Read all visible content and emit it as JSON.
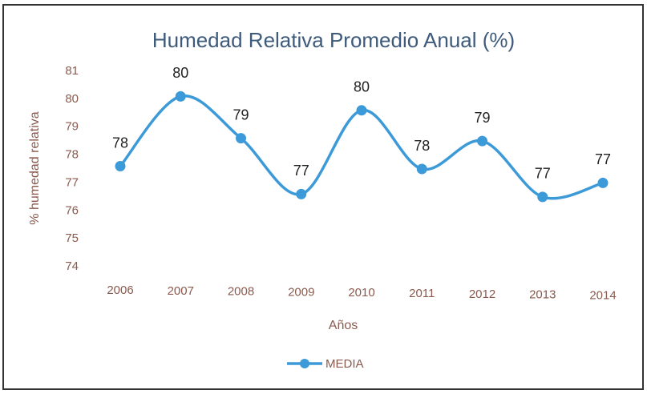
{
  "chart_data": {
    "type": "line",
    "title": "Humedad Relativa Promedio Anual (%)",
    "x_label": "Años",
    "y_label": "% humedad relativa",
    "categories": [
      "2006",
      "2007",
      "2008",
      "2009",
      "2010",
      "2011",
      "2012",
      "2013",
      "2014"
    ],
    "series": [
      {
        "name": "MEDIA",
        "color": "#3d9ad8",
        "values": [
          77.6,
          80.1,
          78.6,
          76.6,
          79.6,
          77.5,
          78.5,
          76.5,
          77.0
        ],
        "value_labels": [
          "78",
          "80",
          "79",
          "77",
          "80",
          "78",
          "79",
          "77",
          "77"
        ]
      }
    ],
    "ylim": [
      74,
      81
    ],
    "yticks": [
      74,
      75,
      76,
      77,
      78,
      79,
      80,
      81
    ],
    "grid": false,
    "legend": "bottom"
  }
}
